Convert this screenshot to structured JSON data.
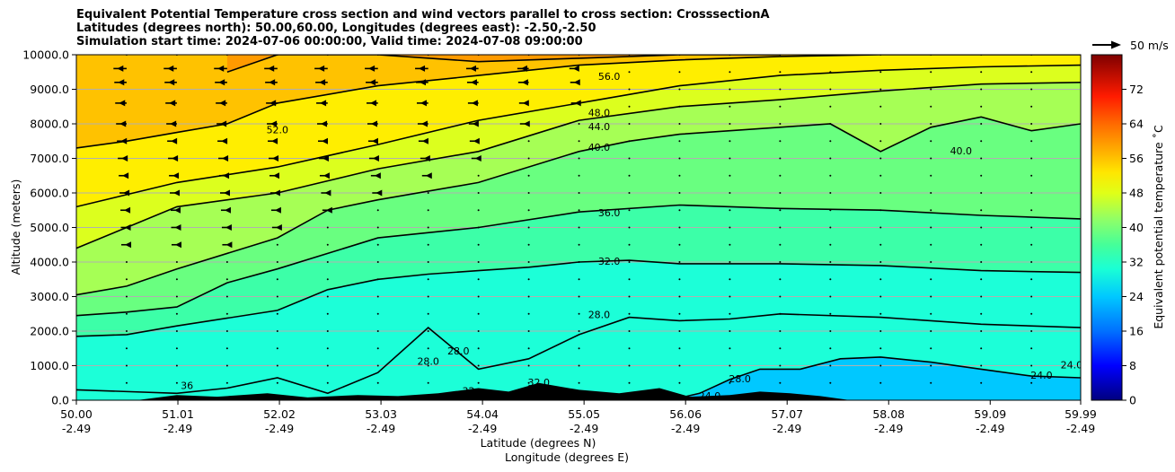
{
  "title_lines": [
    "Equivalent Potential Temperature cross section and wind vectors parallel to cross section: CrosssectionA",
    "Latitudes (degrees north): 50.00,60.00, Longitudes (degrees east): -2.50,-2.50",
    "Simulation start time: 2024-07-06 00:00:00, Valid time: 2024-07-08 09:00:00"
  ],
  "chart_data": {
    "type": "contour",
    "ylabel": "Altitude (meters)",
    "xlabel": "Latitude (degrees N)",
    "xlabel2": "Longitude (degrees E)",
    "ylim": [
      0,
      10000
    ],
    "yticks": [
      "0.0",
      "1000.0",
      "2000.0",
      "3000.0",
      "4000.0",
      "5000.0",
      "6000.0",
      "7000.0",
      "8000.0",
      "9000.0",
      "10000.0"
    ],
    "xlim": [
      50.0,
      59.99
    ],
    "xticks": [
      {
        "lat": "50.00",
        "lon": "-2.49"
      },
      {
        "lat": "51.01",
        "lon": "-2.49"
      },
      {
        "lat": "52.02",
        "lon": "-2.49"
      },
      {
        "lat": "53.03",
        "lon": "-2.49"
      },
      {
        "lat": "54.04",
        "lon": "-2.49"
      },
      {
        "lat": "55.05",
        "lon": "-2.49"
      },
      {
        "lat": "56.06",
        "lon": "-2.49"
      },
      {
        "lat": "57.07",
        "lon": "-2.49"
      },
      {
        "lat": "58.08",
        "lon": "-2.49"
      },
      {
        "lat": "59.09",
        "lon": "-2.49"
      },
      {
        "lat": "59.99",
        "lon": "-2.49"
      }
    ],
    "grid": "horizontal",
    "colorbar": {
      "label": "Equivalent potential temperature ˚C",
      "range": [
        0,
        80
      ],
      "ticks": [
        "0",
        "8",
        "16",
        "24",
        "32",
        "40",
        "48",
        "56",
        "64",
        "72"
      ]
    },
    "quiver_key": {
      "label": "50 m/s",
      "value": 50
    },
    "contour_lines": [
      {
        "level": "24.0",
        "x": [
          55.9,
          56.2,
          56.5,
          56.8,
          57.2,
          57.6,
          58.0,
          58.5,
          59.0,
          59.5,
          59.99
        ],
        "z": [
          0,
          200,
          600,
          900,
          900,
          1200,
          1250,
          1100,
          900,
          700,
          650
        ]
      },
      {
        "level": "28.0",
        "x": [
          50.0,
          51.0,
          51.5,
          52.0,
          52.5,
          53.0,
          53.5,
          54.0,
          54.5,
          55.0,
          55.5,
          56.0,
          56.5,
          57.0,
          58.0,
          59.0,
          59.99
        ],
        "z": [
          300,
          200,
          350,
          650,
          200,
          800,
          2100,
          900,
          1200,
          1900,
          2400,
          2300,
          2350,
          2500,
          2400,
          2200,
          2100
        ]
      },
      {
        "level": "32.0",
        "x": [
          50.0,
          50.5,
          51.0,
          52.0,
          52.5,
          53.0,
          53.5,
          54.0,
          54.5,
          55.0,
          55.5,
          56.0,
          57.0,
          58.0,
          59.0,
          59.99
        ],
        "z": [
          1850,
          1900,
          2150,
          2600,
          3200,
          3500,
          3650,
          3750,
          3850,
          4000,
          4050,
          3950,
          3950,
          3900,
          3750,
          3700
        ]
      },
      {
        "level": "36.0",
        "x": [
          50.0,
          50.5,
          51.0,
          51.5,
          52.0,
          53.0,
          54.0,
          55.0,
          56.0,
          57.0,
          58.0,
          59.0,
          59.99
        ],
        "z": [
          2450,
          2550,
          2700,
          3400,
          3800,
          4700,
          5000,
          5450,
          5650,
          5550,
          5500,
          5350,
          5250
        ]
      },
      {
        "level": "40.0",
        "x": [
          50.0,
          50.5,
          51.0,
          52.0,
          52.5,
          53.0,
          54.0,
          55.0,
          55.5,
          56.0,
          57.0,
          57.5,
          58.0,
          58.5,
          59.0,
          59.5,
          59.99
        ],
        "z": [
          3050,
          3300,
          3800,
          4700,
          5500,
          5800,
          6300,
          7200,
          7500,
          7700,
          7900,
          8000,
          7200,
          7900,
          8200,
          7800,
          8000
        ]
      },
      {
        "level": "44.0",
        "x": [
          50.0,
          50.5,
          51.0,
          52.0,
          53.0,
          54.0,
          55.0,
          56.0,
          57.0,
          58.0,
          59.0,
          59.99
        ],
        "z": [
          4400,
          5000,
          5600,
          6000,
          6700,
          7200,
          8100,
          8500,
          8700,
          8950,
          9150,
          9200
        ]
      },
      {
        "level": "48.0",
        "x": [
          50.0,
          50.5,
          51.0,
          52.0,
          53.0,
          54.0,
          55.0,
          56.0,
          57.0,
          58.0,
          59.0,
          59.99
        ],
        "z": [
          5600,
          5950,
          6300,
          6750,
          7400,
          8100,
          8600,
          9100,
          9400,
          9550,
          9650,
          9700
        ]
      },
      {
        "level": "52.0",
        "x": [
          50.0,
          50.5,
          51.0,
          51.5,
          52.0,
          53.0,
          54.0,
          55.0,
          56.0,
          57.0,
          58.0,
          59.0,
          59.99
        ],
        "z": [
          7300,
          7500,
          7750,
          8000,
          8600,
          9100,
          9400,
          9700,
          9850,
          9950,
          10000,
          10000,
          10000
        ]
      },
      {
        "level": "56.0",
        "x": [
          51.5,
          52.0,
          53.0,
          54.0,
          55.0,
          56.0,
          57.0
        ],
        "z": [
          9500,
          10000,
          10000,
          9800,
          9900,
          10000,
          10000
        ]
      }
    ],
    "wind_vectors": [
      {
        "z": 9600,
        "x": [
          50.5,
          51.0,
          51.5,
          52.0,
          52.5,
          53.0,
          53.5,
          54.0,
          54.5,
          55.0
        ],
        "u": [
          -22,
          -22,
          -22,
          -22,
          -22,
          -22,
          -22,
          -20,
          -18,
          -14
        ]
      },
      {
        "z": 9200,
        "x": [
          50.5,
          51.0,
          51.5,
          52.0,
          52.5,
          53.0,
          53.5,
          54.0,
          54.5,
          55.0
        ],
        "u": [
          -20,
          -20,
          -20,
          -20,
          -20,
          -20,
          -20,
          -18,
          -16,
          -12
        ]
      },
      {
        "z": 8600,
        "x": [
          50.5,
          51.0,
          51.5,
          52.0,
          52.5,
          53.0,
          53.5,
          54.0,
          54.5,
          55.0
        ],
        "u": [
          -18,
          -18,
          -18,
          -18,
          -18,
          -18,
          -18,
          -16,
          -14,
          -10
        ]
      },
      {
        "z": 8000,
        "x": [
          50.5,
          51.0,
          51.5,
          52.0,
          52.5,
          53.0,
          53.5,
          54.0,
          54.5
        ],
        "u": [
          -16,
          -16,
          -16,
          -16,
          -16,
          -16,
          -16,
          -14,
          -12
        ]
      },
      {
        "z": 7500,
        "x": [
          50.5,
          51.0,
          51.5,
          52.0,
          52.5,
          53.0,
          53.5,
          54.0
        ],
        "u": [
          -14,
          -14,
          -14,
          -14,
          -14,
          -14,
          -14,
          -12
        ]
      },
      {
        "z": 7000,
        "x": [
          50.5,
          51.0,
          51.5,
          52.0,
          52.5,
          53.0,
          53.5,
          54.0
        ],
        "u": [
          -12,
          -12,
          -12,
          -12,
          -12,
          -12,
          -10,
          -8
        ]
      },
      {
        "z": 6500,
        "x": [
          50.5,
          51.0,
          51.5,
          52.0,
          52.5,
          53.0,
          53.5
        ],
        "u": [
          -10,
          -10,
          -10,
          -10,
          -10,
          -8,
          -6
        ]
      },
      {
        "z": 6000,
        "x": [
          50.5,
          51.0,
          51.5,
          52.0,
          52.5,
          53.0
        ],
        "u": [
          -8,
          -8,
          -8,
          -8,
          -7,
          -5
        ]
      },
      {
        "z": 5500,
        "x": [
          50.5,
          51.0,
          51.5,
          52.0,
          52.5
        ],
        "u": [
          -6,
          -6,
          -6,
          -6,
          -4
        ]
      },
      {
        "z": 5000,
        "x": [
          50.5,
          51.0,
          51.5,
          52.0
        ],
        "u": [
          -5,
          -5,
          -4,
          -4
        ]
      },
      {
        "z": 4500,
        "x": [
          50.5,
          51.0,
          51.5
        ],
        "u": [
          -4,
          -4,
          -3
        ]
      }
    ],
    "terrain": {
      "x": [
        50.6,
        51.0,
        51.4,
        51.9,
        52.3,
        52.8,
        53.2,
        53.6,
        54.0,
        54.3,
        54.6,
        55.0,
        55.4,
        55.8,
        56.1,
        56.5,
        56.8,
        57.1,
        57.4,
        57.7
      ],
      "z": [
        0,
        150,
        100,
        200,
        80,
        150,
        120,
        200,
        350,
        250,
        500,
        300,
        200,
        350,
        100,
        150,
        250,
        200,
        120,
        0
      ]
    },
    "inline_labels": [
      "52.0",
      "56.0",
      "48.0",
      "44.0",
      "40.0",
      "36.0",
      "32.0",
      "28.0",
      "28.0",
      "28.0",
      "24.0",
      "24.0",
      "24.0",
      "40.0",
      "36",
      "32",
      "32.0",
      "28.0"
    ]
  }
}
